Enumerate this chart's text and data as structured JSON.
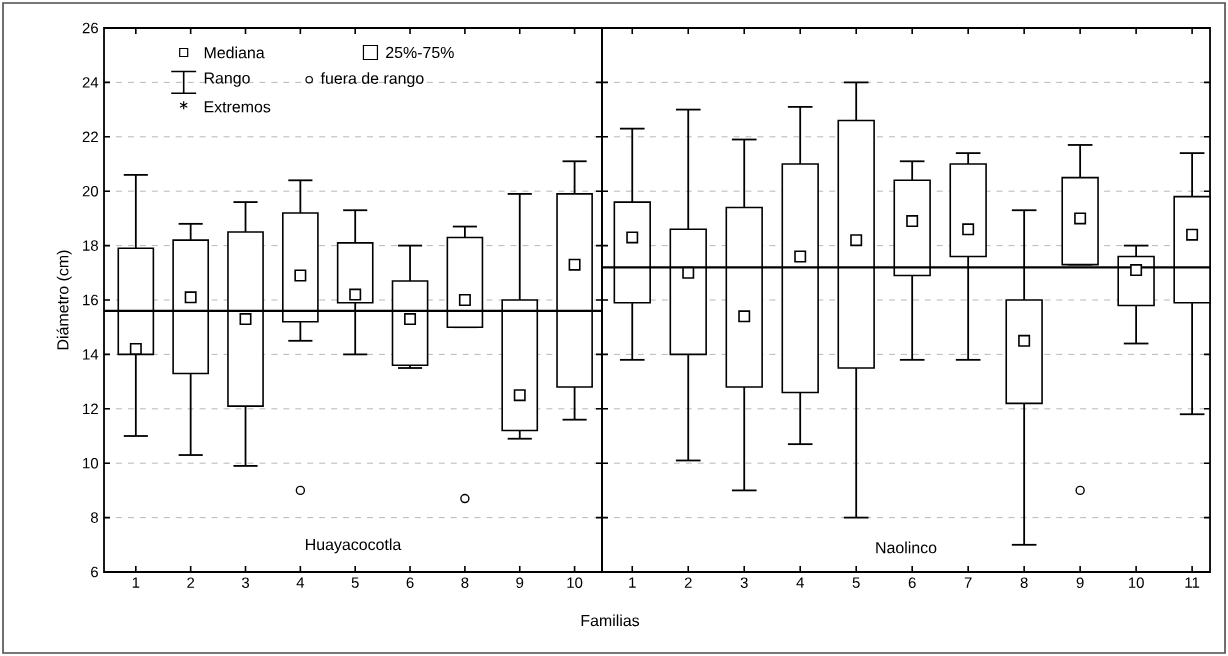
{
  "chart_data": [
    {
      "type": "box",
      "ylabel": "Diámetro (cm)",
      "xlabel": "Familias",
      "categories": [
        "1",
        "2",
        "3",
        "4",
        "5",
        "6",
        "8",
        "9",
        "10"
      ],
      "boxes": [
        {
          "low": 11.0,
          "q1": 14.0,
          "median": 14.2,
          "q3": 17.9,
          "high": 20.6
        },
        {
          "low": 10.3,
          "q1": 13.3,
          "median": 16.1,
          "q3": 18.2,
          "high": 18.8
        },
        {
          "low": 9.9,
          "q1": 12.1,
          "median": 15.3,
          "q3": 18.5,
          "high": 19.6
        },
        {
          "low": 14.5,
          "q1": 15.2,
          "median": 16.9,
          "q3": 19.2,
          "high": 20.4,
          "outliers": [
            9.0
          ]
        },
        {
          "low": 14.0,
          "q1": 15.9,
          "median": 16.2,
          "q3": 18.1,
          "high": 19.3
        },
        {
          "low": 13.5,
          "q1": 13.6,
          "median": 15.3,
          "q3": 16.7,
          "high": 18.0
        },
        {
          "low": 15.0,
          "q1": 15.0,
          "median": 16.0,
          "q3": 18.3,
          "high": 18.7,
          "outliers": [
            8.7
          ]
        },
        {
          "low": 10.9,
          "q1": 11.2,
          "median": 12.5,
          "q3": 16.0,
          "high": 19.9
        },
        {
          "low": 11.6,
          "q1": 12.8,
          "median": 17.3,
          "q3": 19.9,
          "high": 21.1
        }
      ],
      "ylim": [
        6,
        26
      ],
      "yticks": [
        6,
        8,
        10,
        12,
        14,
        16,
        18,
        20,
        22,
        24,
        26
      ],
      "grid": "y",
      "ref_lines": [
        {
          "axis": "y",
          "value": 15.6
        }
      ],
      "annotations": [
        "Mediana",
        "25%-75%",
        "Rango",
        "fuera de rango",
        "Extremos",
        "Huayacocotla"
      ]
    },
    {
      "type": "box",
      "categories": [
        "1",
        "2",
        "3",
        "4",
        "5",
        "6",
        "7",
        "8",
        "9",
        "10",
        "11"
      ],
      "boxes": [
        {
          "low": 13.8,
          "q1": 15.9,
          "median": 18.3,
          "q3": 19.6,
          "high": 22.3
        },
        {
          "low": 10.1,
          "q1": 14.0,
          "median": 17.0,
          "q3": 18.6,
          "high": 23.0
        },
        {
          "low": 9.0,
          "q1": 12.8,
          "median": 15.4,
          "q3": 19.4,
          "high": 21.9
        },
        {
          "low": 10.7,
          "q1": 12.6,
          "median": 17.6,
          "q3": 21.0,
          "high": 23.1
        },
        {
          "low": 8.0,
          "q1": 13.5,
          "median": 18.2,
          "q3": 22.6,
          "high": 24.0
        },
        {
          "low": 13.8,
          "q1": 16.9,
          "median": 18.9,
          "q3": 20.4,
          "high": 21.1
        },
        {
          "low": 13.8,
          "q1": 17.6,
          "median": 18.6,
          "q3": 21.0,
          "high": 21.4
        },
        {
          "low": 7.0,
          "q1": 12.2,
          "median": 14.5,
          "q3": 16.0,
          "high": 19.3
        },
        {
          "low": 17.3,
          "q1": 17.3,
          "median": 19.0,
          "q3": 20.5,
          "high": 21.7,
          "outliers": [
            9.0
          ]
        },
        {
          "low": 14.4,
          "q1": 15.8,
          "median": 17.1,
          "q3": 17.6,
          "high": 18.0
        },
        {
          "low": 11.8,
          "q1": 15.9,
          "median": 18.4,
          "q3": 19.8,
          "high": 21.4
        }
      ],
      "ylim": [
        6,
        26
      ],
      "yticks": [
        6,
        8,
        10,
        12,
        14,
        16,
        18,
        20,
        22,
        24,
        26
      ],
      "grid": "y",
      "tick_labels": "x",
      "ref_lines": [
        {
          "axis": "y",
          "value": 17.2
        }
      ],
      "annotations": [
        "Naolinco"
      ]
    }
  ]
}
